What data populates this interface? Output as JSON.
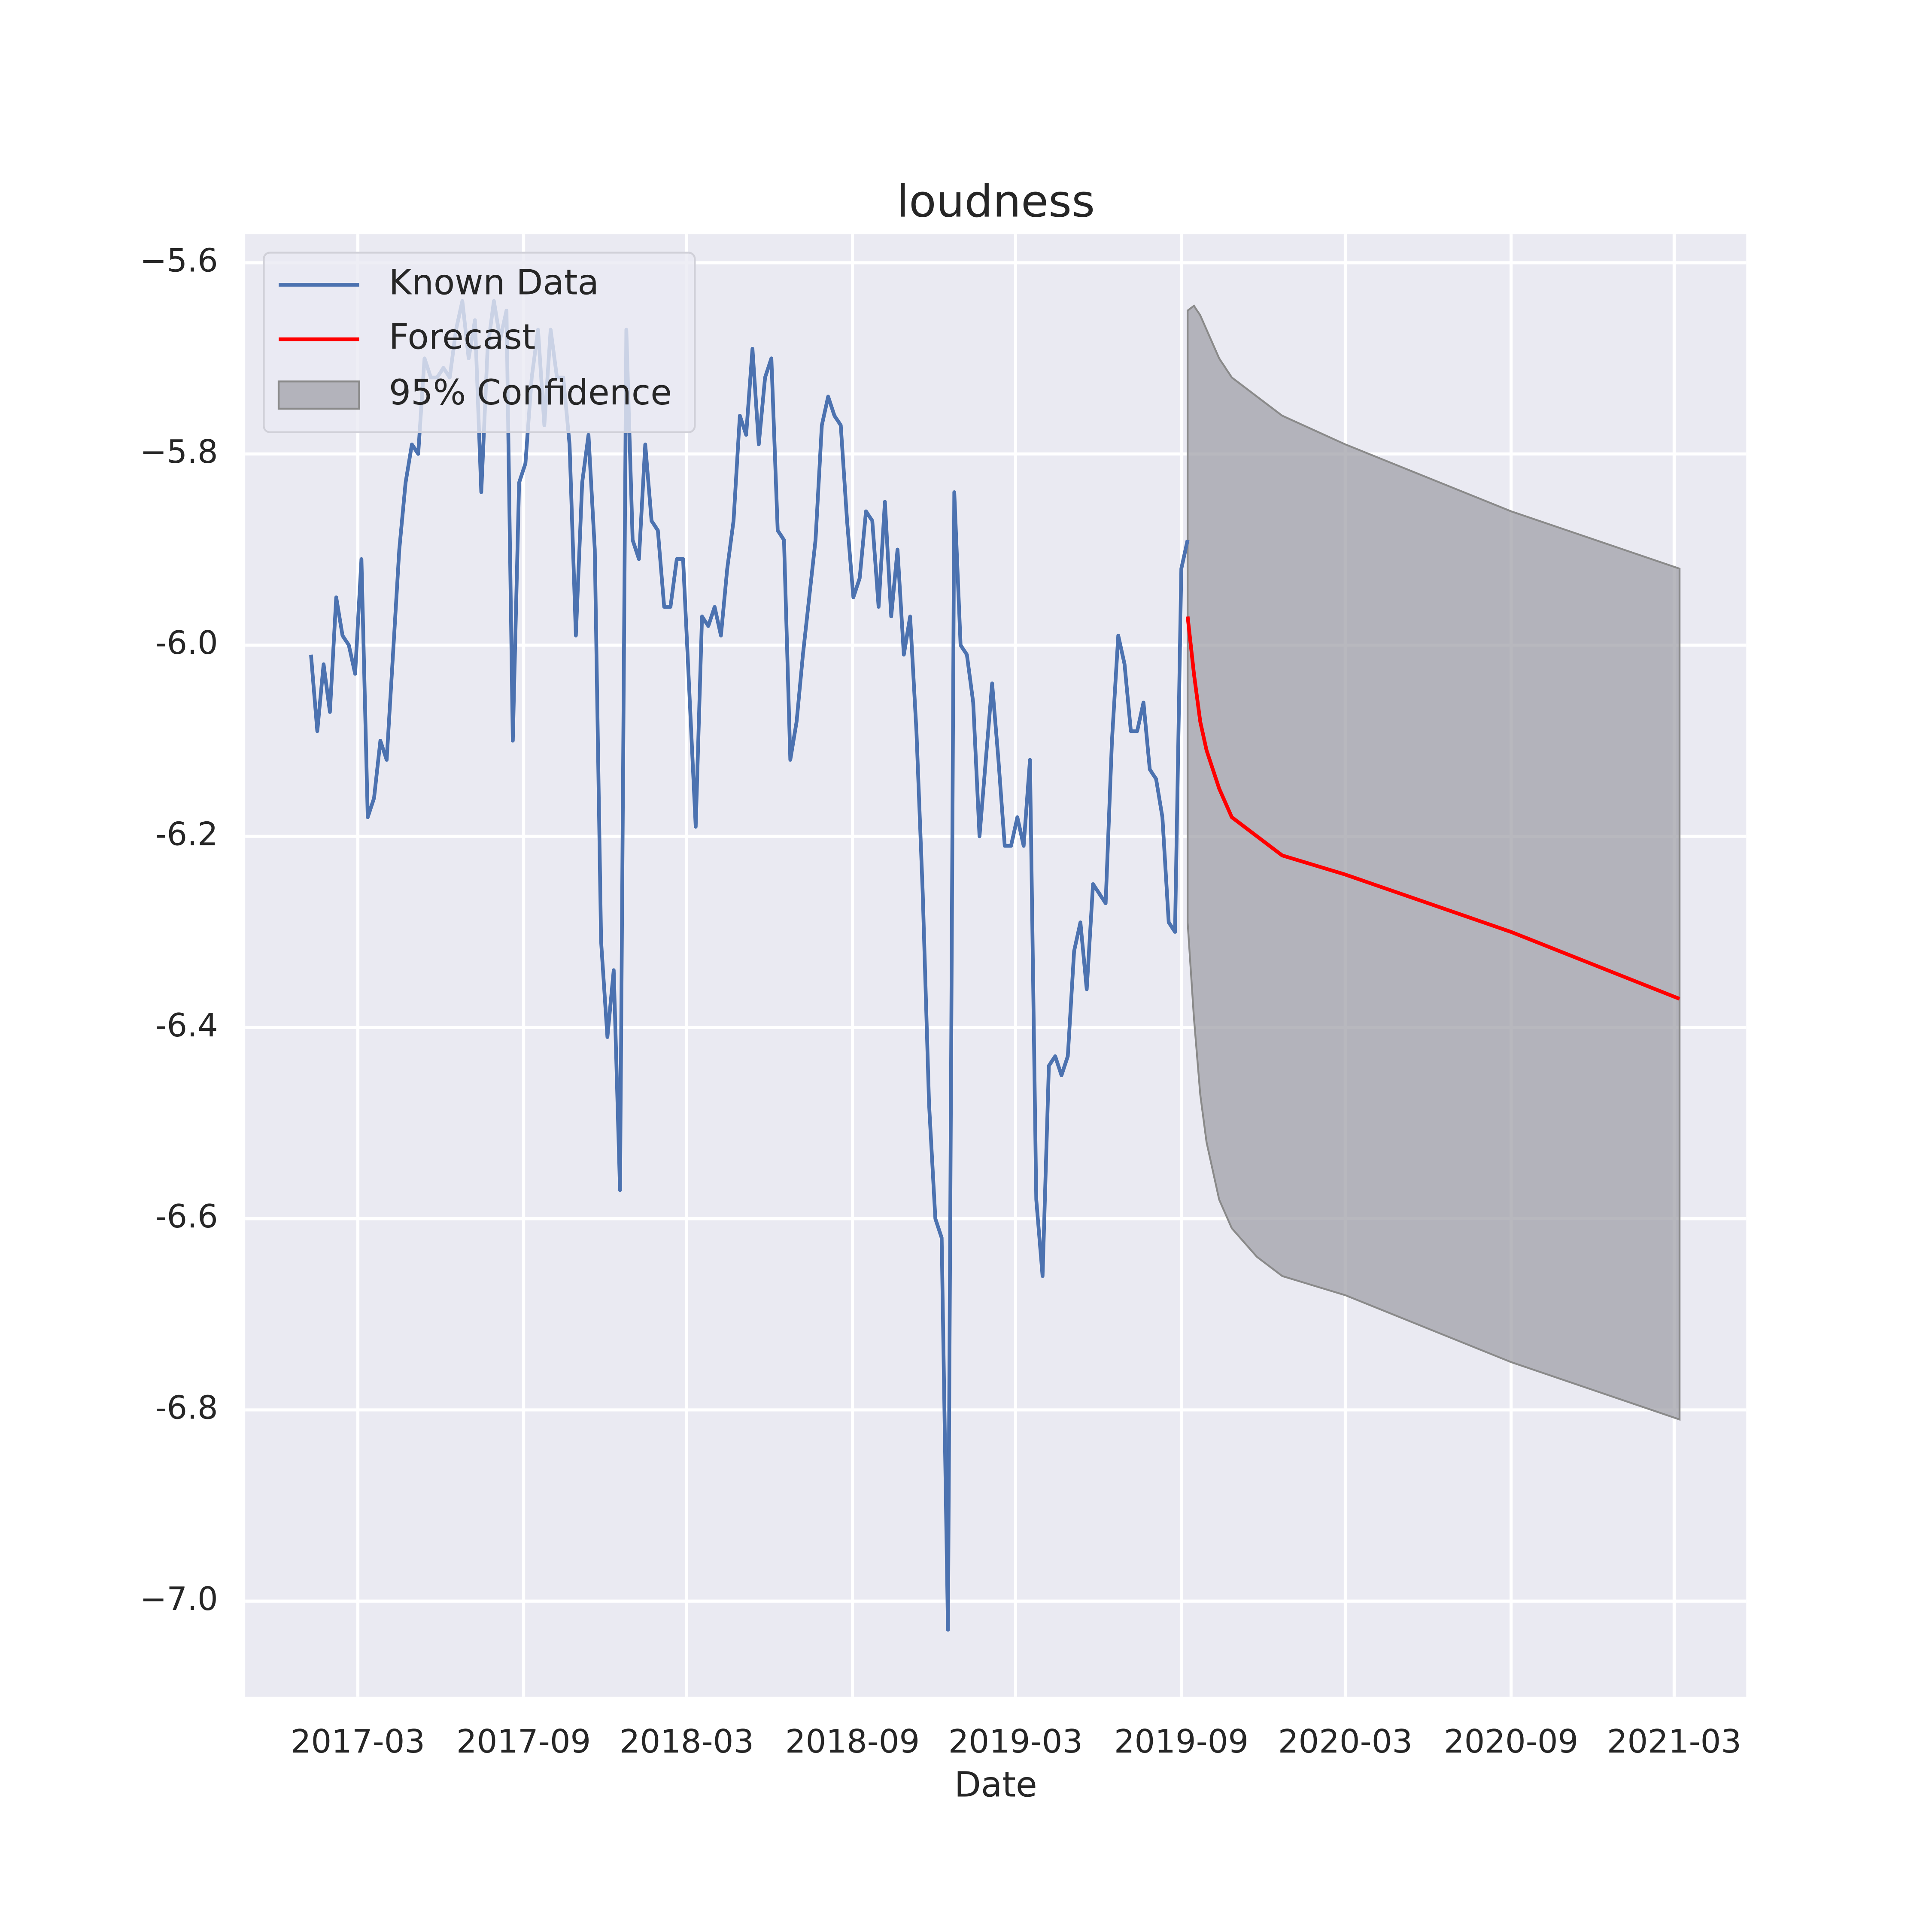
{
  "chart_data": {
    "type": "line",
    "title": "loudness",
    "x_label": "Date",
    "xlim": [
      "2016-10-27",
      "2021-05-20"
    ],
    "ylim": [
      -7.1,
      -5.57
    ],
    "xticks": [
      {
        "value": "2017-03-01",
        "label": "2017-03"
      },
      {
        "value": "2017-09-01",
        "label": "2017-09"
      },
      {
        "value": "2018-03-01",
        "label": "2018-03"
      },
      {
        "value": "2018-09-01",
        "label": "2018-09"
      },
      {
        "value": "2019-03-01",
        "label": "2019-03"
      },
      {
        "value": "2019-09-01",
        "label": "2019-09"
      },
      {
        "value": "2020-03-01",
        "label": "2020-03"
      },
      {
        "value": "2020-09-01",
        "label": "2020-09"
      },
      {
        "value": "2021-03-01",
        "label": "2021-03"
      }
    ],
    "yticks": [
      {
        "value": -5.6,
        "label": "−5.6"
      },
      {
        "value": -5.8,
        "label": "−5.8"
      },
      {
        "value": -6.0,
        "label": "-6.0"
      },
      -6.2,
      -6.4,
      -6.6,
      -6.8,
      {
        "value": -7.0,
        "label": "−7.0"
      }
    ],
    "grid": true,
    "legend": "upper left",
    "series": [
      {
        "name": "Known Data",
        "color": "#4c72b0",
        "x": [
          "2017-01-08",
          "2017-01-15",
          "2017-01-22",
          "2017-01-29",
          "2017-02-05",
          "2017-02-12",
          "2017-02-19",
          "2017-02-26",
          "2017-03-05",
          "2017-03-12",
          "2017-03-19",
          "2017-03-26",
          "2017-04-02",
          "2017-04-09",
          "2017-04-16",
          "2017-04-23",
          "2017-04-30",
          "2017-05-07",
          "2017-05-14",
          "2017-05-21",
          "2017-05-28",
          "2017-06-04",
          "2017-06-11",
          "2017-06-18",
          "2017-06-25",
          "2017-07-02",
          "2017-07-09",
          "2017-07-16",
          "2017-07-23",
          "2017-07-30",
          "2017-08-06",
          "2017-08-13",
          "2017-08-20",
          "2017-08-27",
          "2017-09-03",
          "2017-09-10",
          "2017-09-17",
          "2017-09-24",
          "2017-10-01",
          "2017-10-08",
          "2017-10-15",
          "2017-10-22",
          "2017-10-29",
          "2017-11-05",
          "2017-11-12",
          "2017-11-19",
          "2017-11-26",
          "2017-12-03",
          "2017-12-10",
          "2017-12-17",
          "2017-12-24",
          "2017-12-31",
          "2018-01-07",
          "2018-01-14",
          "2018-01-21",
          "2018-01-28",
          "2018-02-04",
          "2018-02-11",
          "2018-02-18",
          "2018-02-25",
          "2018-03-04",
          "2018-03-11",
          "2018-03-18",
          "2018-03-25",
          "2018-04-01",
          "2018-04-08",
          "2018-04-15",
          "2018-04-22",
          "2018-04-29",
          "2018-05-06",
          "2018-05-13",
          "2018-05-20",
          "2018-05-27",
          "2018-06-03",
          "2018-06-10",
          "2018-06-17",
          "2018-06-24",
          "2018-07-01",
          "2018-07-08",
          "2018-07-15",
          "2018-07-22",
          "2018-07-29",
          "2018-08-05",
          "2018-08-12",
          "2018-08-19",
          "2018-08-26",
          "2018-09-02",
          "2018-09-09",
          "2018-09-16",
          "2018-09-23",
          "2018-09-30",
          "2018-10-07",
          "2018-10-14",
          "2018-10-21",
          "2018-10-28",
          "2018-11-04",
          "2018-11-11",
          "2018-11-18",
          "2018-11-25",
          "2018-12-02",
          "2018-12-09",
          "2018-12-16",
          "2018-12-23",
          "2018-12-30",
          "2019-01-06",
          "2019-01-13",
          "2019-01-20",
          "2019-01-27",
          "2019-02-03",
          "2019-02-10",
          "2019-02-17",
          "2019-02-24",
          "2019-03-03",
          "2019-03-10",
          "2019-03-17",
          "2019-03-24",
          "2019-03-31",
          "2019-04-07",
          "2019-04-14",
          "2019-04-21",
          "2019-04-28",
          "2019-05-05",
          "2019-05-12",
          "2019-05-19",
          "2019-05-26",
          "2019-06-02",
          "2019-06-09",
          "2019-06-16",
          "2019-06-23",
          "2019-06-30",
          "2019-07-07",
          "2019-07-14",
          "2019-07-21",
          "2019-07-28",
          "2019-08-04",
          "2019-08-11",
          "2019-08-18",
          "2019-08-25",
          "2019-09-01",
          "2019-09-08"
        ],
        "values": [
          -6.01,
          -6.09,
          -6.02,
          -6.07,
          -5.95,
          -5.99,
          -6.0,
          -6.03,
          -5.91,
          -6.18,
          -6.16,
          -6.1,
          -6.12,
          -6.01,
          -5.9,
          -5.83,
          -5.79,
          -5.8,
          -5.7,
          -5.72,
          -5.72,
          -5.71,
          -5.72,
          -5.67,
          -5.64,
          -5.7,
          -5.66,
          -5.84,
          -5.69,
          -5.64,
          -5.68,
          -5.65,
          -6.1,
          -5.83,
          -5.81,
          -5.72,
          -5.67,
          -5.77,
          -5.67,
          -5.72,
          -5.72,
          -5.79,
          -5.99,
          -5.83,
          -5.78,
          -5.9,
          -6.31,
          -6.41,
          -6.34,
          -6.57,
          -5.67,
          -5.89,
          -5.91,
          -5.79,
          -5.87,
          -5.88,
          -5.96,
          -5.96,
          -5.91,
          -5.91,
          -6.05,
          -6.19,
          -5.97,
          -5.98,
          -5.96,
          -5.99,
          -5.92,
          -5.87,
          -5.76,
          -5.78,
          -5.69,
          -5.79,
          -5.72,
          -5.7,
          -5.88,
          -5.89,
          -6.12,
          -6.08,
          -6.01,
          -5.95,
          -5.89,
          -5.77,
          -5.74,
          -5.76,
          -5.77,
          -5.87,
          -5.95,
          -5.93,
          -5.86,
          -5.87,
          -5.96,
          -5.85,
          -5.97,
          -5.9,
          -6.01,
          -5.97,
          -6.09,
          -6.26,
          -6.48,
          -6.6,
          -6.62,
          -7.03,
          -5.84,
          -6.0,
          -6.01,
          -6.06,
          -6.2,
          -6.12,
          -6.04,
          -6.12,
          -6.21,
          -6.21,
          -6.18,
          -6.21,
          -6.12,
          -6.58,
          -6.66,
          -6.44,
          -6.43,
          -6.45,
          -6.43,
          -6.32,
          -6.29,
          -6.36,
          -6.25,
          -6.26,
          -6.27,
          -6.1,
          -5.99,
          -6.02,
          -6.09,
          -6.09,
          -6.06,
          -6.13,
          -6.14,
          -6.18,
          -6.29,
          -6.3,
          -5.92,
          -5.89
        ]
      },
      {
        "name": "Forecast",
        "color": "#ff0000",
        "x": [
          "2019-09-08",
          "2019-09-15",
          "2019-09-22",
          "2019-09-29",
          "2019-10-13",
          "2019-10-27",
          "2019-11-24",
          "2019-12-22",
          "2020-03-01",
          "2020-09-01",
          "2021-03-07"
        ],
        "values": [
          -5.97,
          -6.03,
          -6.08,
          -6.11,
          -6.15,
          -6.18,
          -6.2,
          -6.22,
          -6.24,
          -6.3,
          -6.37
        ]
      }
    ],
    "band": {
      "name": "95% Confidence",
      "color": "#a0a0a8",
      "x": [
        "2019-09-08",
        "2019-09-15",
        "2019-09-22",
        "2019-09-29",
        "2019-10-13",
        "2019-10-27",
        "2019-11-24",
        "2019-12-22",
        "2020-03-01",
        "2020-09-01",
        "2021-03-07"
      ],
      "upper": [
        -5.65,
        -5.645,
        -5.655,
        -5.67,
        -5.7,
        -5.72,
        -5.74,
        -5.76,
        -5.79,
        -5.86,
        -5.92
      ],
      "lower": [
        -6.29,
        -6.39,
        -6.47,
        -6.52,
        -6.58,
        -6.61,
        -6.64,
        -6.66,
        -6.68,
        -6.75,
        -6.81
      ]
    }
  }
}
